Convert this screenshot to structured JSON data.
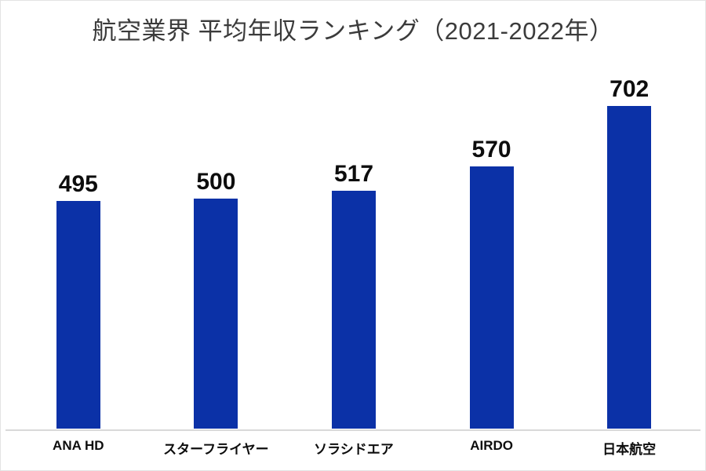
{
  "page": {
    "title": "航空業界 平均年収ランキング（2021-2022年）"
  },
  "chart_data": {
    "type": "bar",
    "title": "航空業界 平均年収ランキング（2021-2022年）",
    "categories": [
      "ANA HD",
      "スターフライヤー",
      "ソラシドエア",
      "AIRDO",
      "日本航空"
    ],
    "values": [
      495,
      500,
      517,
      570,
      702
    ],
    "data_labels": [
      495,
      500,
      517,
      570,
      702
    ],
    "xlabel": "",
    "ylabel": "",
    "ylim": [
      0,
      770
    ],
    "grid": false,
    "legend": false,
    "orientation": "vertical",
    "colors": {
      "bar": "#0b31a7",
      "title_text": "#3b3b3b",
      "label_text": "#0d0d0d",
      "axis_line": "#d9d9d9",
      "background": "#ffffff"
    }
  }
}
